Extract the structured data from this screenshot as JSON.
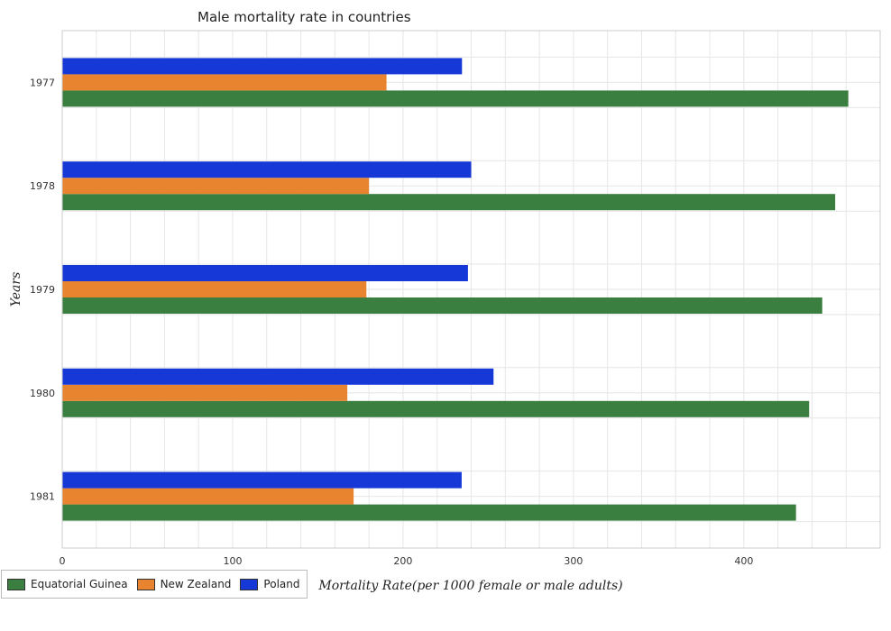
{
  "chart_data": {
    "type": "bar",
    "orientation": "horizontal",
    "title": "Male mortality rate in countries",
    "xlabel": "Mortality Rate(per 1000 female or male adults)",
    "ylabel": "Years",
    "categories": [
      "1977",
      "1978",
      "1979",
      "1980",
      "1981"
    ],
    "series": [
      {
        "name": "Equatorial Guinea",
        "color": "#3a7f3f",
        "values": [
          461.3,
          453.6,
          446.0,
          438.3,
          430.6
        ]
      },
      {
        "name": "New Zealand",
        "color": "#e8832f",
        "values": [
          190.3,
          180.0,
          178.5,
          167.3,
          171.0
        ]
      },
      {
        "name": "Poland",
        "color": "#1538d6",
        "values": [
          234.6,
          240.0,
          238.1,
          253.1,
          234.4
        ]
      }
    ],
    "xlim": [
      0,
      480
    ],
    "xticks": [
      0,
      100,
      200,
      300,
      400
    ],
    "grid": true,
    "legend_position": "bottom-left"
  }
}
